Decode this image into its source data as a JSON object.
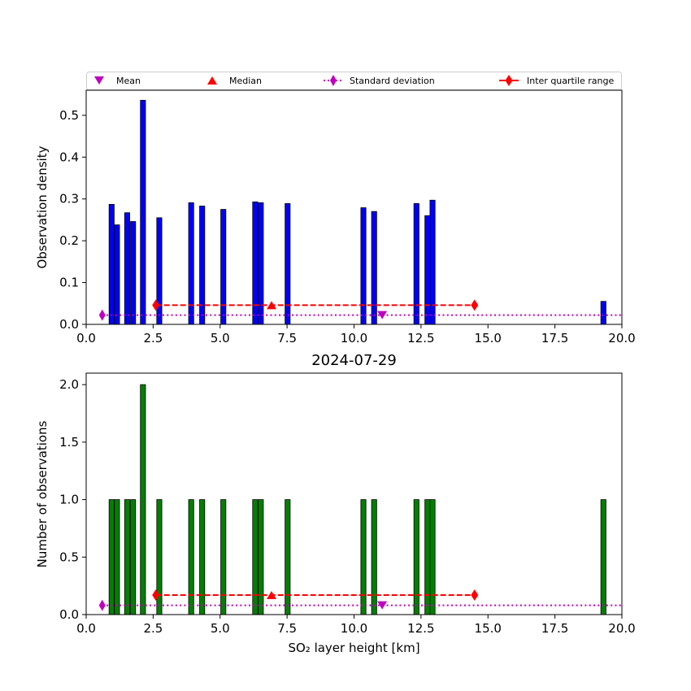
{
  "legend": {
    "mean": "Mean",
    "median": "Median",
    "std": "Standard deviation",
    "iqr": "Inter quartile range"
  },
  "colors": {
    "density_bar": "#0000ff",
    "count_bar": "#008000",
    "mean_marker": "#bf00bf",
    "std_line": "#bf00bf",
    "iqr_line": "#ff0000"
  },
  "chart_data": [
    {
      "type": "bar",
      "ylabel": "Observation density",
      "xlabel": "",
      "title": "",
      "xlim": [
        0,
        20
      ],
      "ylim": [
        0,
        0.56
      ],
      "xticks": [
        "0.0",
        "2.5",
        "5.0",
        "7.5",
        "10.0",
        "12.5",
        "15.0",
        "17.5",
        "20.0"
      ],
      "yticks": [
        "0.0",
        "0.1",
        "0.2",
        "0.3",
        "0.4",
        "0.5"
      ],
      "bars": [
        {
          "x": 0.95,
          "value": 0.287
        },
        {
          "x": 1.15,
          "value": 0.238
        },
        {
          "x": 1.53,
          "value": 0.267
        },
        {
          "x": 1.75,
          "value": 0.246
        },
        {
          "x": 2.12,
          "value": 0.536
        },
        {
          "x": 2.73,
          "value": 0.255
        },
        {
          "x": 3.92,
          "value": 0.291
        },
        {
          "x": 4.33,
          "value": 0.283
        },
        {
          "x": 5.12,
          "value": 0.275
        },
        {
          "x": 6.31,
          "value": 0.293
        },
        {
          "x": 6.52,
          "value": 0.291
        },
        {
          "x": 7.52,
          "value": 0.289
        },
        {
          "x": 10.35,
          "value": 0.279
        },
        {
          "x": 10.75,
          "value": 0.27
        },
        {
          "x": 12.33,
          "value": 0.289
        },
        {
          "x": 12.74,
          "value": 0.26
        },
        {
          "x": 12.93,
          "value": 0.297
        },
        {
          "x": 19.31,
          "value": 0.055
        }
      ],
      "bar_width": 0.19,
      "mean": {
        "x": 11.05,
        "y": 0.022
      },
      "median": {
        "x": 6.92,
        "y": 0.046
      },
      "std": {
        "x_start": 0.6,
        "y": 0.022
      },
      "iqr": {
        "x_start": 2.6,
        "x_end": 14.5,
        "y": 0.046
      }
    },
    {
      "type": "bar",
      "ylabel": "Number of observations",
      "xlabel": "SO₂ layer height [km]",
      "title": "2024-07-29",
      "xlim": [
        0,
        20
      ],
      "ylim": [
        0,
        2.1
      ],
      "xticks": [
        "0.0",
        "2.5",
        "5.0",
        "7.5",
        "10.0",
        "12.5",
        "15.0",
        "17.5",
        "20.0"
      ],
      "yticks": [
        "0.0",
        "0.5",
        "1.0",
        "1.5",
        "2.0"
      ],
      "bars": [
        {
          "x": 0.95,
          "value": 1
        },
        {
          "x": 1.15,
          "value": 1
        },
        {
          "x": 1.53,
          "value": 1
        },
        {
          "x": 1.75,
          "value": 1
        },
        {
          "x": 2.12,
          "value": 2
        },
        {
          "x": 2.73,
          "value": 1
        },
        {
          "x": 3.92,
          "value": 1
        },
        {
          "x": 4.33,
          "value": 1
        },
        {
          "x": 5.12,
          "value": 1
        },
        {
          "x": 6.31,
          "value": 1
        },
        {
          "x": 6.52,
          "value": 1
        },
        {
          "x": 7.52,
          "value": 1
        },
        {
          "x": 10.35,
          "value": 1
        },
        {
          "x": 10.75,
          "value": 1
        },
        {
          "x": 12.33,
          "value": 1
        },
        {
          "x": 12.74,
          "value": 1
        },
        {
          "x": 12.93,
          "value": 1
        },
        {
          "x": 19.31,
          "value": 1
        }
      ],
      "bar_width": 0.19,
      "mean": {
        "x": 11.05,
        "y": 0.08
      },
      "median": {
        "x": 6.92,
        "y": 0.17
      },
      "std": {
        "x_start": 0.6,
        "y": 0.08
      },
      "iqr": {
        "x_start": 2.6,
        "x_end": 14.5,
        "y": 0.17
      }
    }
  ]
}
